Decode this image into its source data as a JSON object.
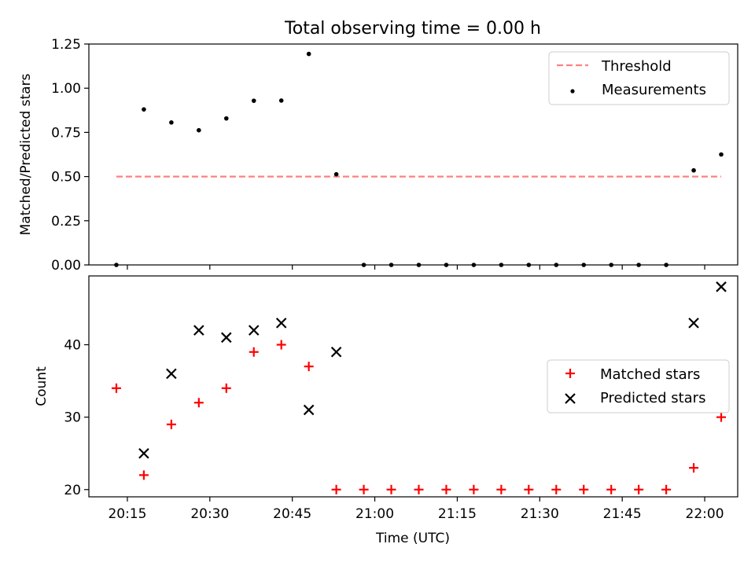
{
  "title": "Total observing time = 0.00 h",
  "xlabel": "Time (UTC)",
  "x_tick_labels": [
    "20:15",
    "20:30",
    "20:45",
    "21:00",
    "21:15",
    "21:30",
    "21:45",
    "22:00"
  ],
  "chart_data": [
    {
      "type": "scatter",
      "title": "Total observing time = 0.00 h",
      "ylabel": "Matched/Predicted stars",
      "xlim": [
        "20:08",
        "22:06"
      ],
      "ylim": [
        0,
        1.25
      ],
      "yticks": [
        "0.00",
        "0.25",
        "0.50",
        "0.75",
        "1.00",
        "1.25"
      ],
      "legend_position": "top-right",
      "grid": false,
      "x": [
        "20:13",
        "20:18",
        "20:23",
        "20:28",
        "20:33",
        "20:38",
        "20:43",
        "20:48",
        "20:53",
        "20:58",
        "21:03",
        "21:08",
        "21:13",
        "21:18",
        "21:23",
        "21:28",
        "21:33",
        "21:38",
        "21:43",
        "21:48",
        "21:53",
        "21:58",
        "22:03"
      ],
      "threshold": {
        "name": "Threshold",
        "value": 0.5,
        "x_range": [
          "20:13",
          "22:03"
        ],
        "color": "#ff8080"
      },
      "series": [
        {
          "name": "Measurements",
          "marker": "dot",
          "color": "#000000",
          "values": [
            0.0,
            0.88,
            0.806,
            0.762,
            0.829,
            0.929,
            0.93,
            1.194,
            0.513,
            0.0,
            0.0,
            0.0,
            0.0,
            0.0,
            0.0,
            0.0,
            0.0,
            0.0,
            0.0,
            0.0,
            0.0,
            0.535,
            0.625
          ]
        }
      ]
    },
    {
      "type": "scatter",
      "ylabel": "Count",
      "xlabel": "Time (UTC)",
      "xlim": [
        "20:08",
        "22:06"
      ],
      "ylim": [
        19,
        49.5
      ],
      "yticks": [
        "20",
        "30",
        "40"
      ],
      "legend_position": "center-right",
      "grid": false,
      "series": [
        {
          "name": "Matched stars",
          "marker": "plus",
          "color": "#ff0000",
          "points": [
            [
              "20:13",
              34
            ],
            [
              "20:18",
              22
            ],
            [
              "20:23",
              29
            ],
            [
              "20:28",
              32
            ],
            [
              "20:33",
              34
            ],
            [
              "20:38",
              39
            ],
            [
              "20:43",
              40
            ],
            [
              "20:48",
              37
            ],
            [
              "20:53",
              20
            ],
            [
              "20:58",
              20
            ],
            [
              "21:03",
              20
            ],
            [
              "21:08",
              20
            ],
            [
              "21:13",
              20
            ],
            [
              "21:18",
              20
            ],
            [
              "21:23",
              20
            ],
            [
              "21:28",
              20
            ],
            [
              "21:33",
              20
            ],
            [
              "21:38",
              20
            ],
            [
              "21:43",
              20
            ],
            [
              "21:48",
              20
            ],
            [
              "21:53",
              20
            ],
            [
              "21:58",
              23
            ],
            [
              "22:03",
              30
            ]
          ]
        },
        {
          "name": "Predicted stars",
          "marker": "x",
          "color": "#000000",
          "points": [
            [
              "20:18",
              25
            ],
            [
              "20:23",
              36
            ],
            [
              "20:28",
              42
            ],
            [
              "20:33",
              41
            ],
            [
              "20:38",
              42
            ],
            [
              "20:43",
              43
            ],
            [
              "20:48",
              31
            ],
            [
              "20:53",
              39
            ],
            [
              "21:58",
              43
            ],
            [
              "22:03",
              48
            ]
          ]
        }
      ]
    }
  ]
}
